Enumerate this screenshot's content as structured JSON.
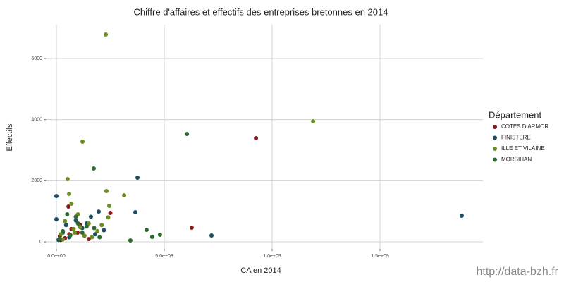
{
  "chart_data": {
    "type": "scatter",
    "title": "Chiffre d'affaires et effectifs des entreprises bretonnes en 2014",
    "x_label": "CA en 2014",
    "y_label": "Effectifs",
    "legend_title": "Département",
    "legend_position": "right",
    "watermark": "http://data-bzh.fr",
    "grid": true,
    "xlim": [
      -49000000,
      1977000000
    ],
    "ylim": [
      -230,
      7108
    ],
    "xticks": [
      {
        "value": 0,
        "label": "0.0e+00"
      },
      {
        "value": 500000000,
        "label": "5.0e+08"
      },
      {
        "value": 1000000000,
        "label": "1.0e+09"
      },
      {
        "value": 1500000000,
        "label": "1.5e+09"
      }
    ],
    "yticks": [
      0,
      2000,
      4000,
      6000
    ],
    "series": [
      {
        "name": "COTES D ARMOR",
        "color": "#8b1a1a",
        "x": [
          925000000,
          627000000,
          56000000,
          250000000,
          16000000,
          98000000,
          40000000,
          70000000,
          130000000,
          20000000,
          60000000,
          150000000,
          110000000
        ],
        "values": [
          3392,
          462,
          1154,
          946,
          185,
          300,
          120,
          420,
          200,
          60,
          250,
          90,
          560
        ]
      },
      {
        "name": "FINISTERE",
        "color": "#1d4e63",
        "x": [
          1879000000,
          376000000,
          366000000,
          719000000,
          0,
          0,
          196000000,
          90000000,
          160000000,
          30000000,
          60000000,
          120000000,
          220000000,
          10000000,
          45000000,
          180000000,
          140000000
        ],
        "values": [
          854,
          2100,
          970,
          208,
          1500,
          740,
          990,
          700,
          820,
          300,
          150,
          450,
          380,
          60,
          550,
          250,
          600
        ]
      },
      {
        "name": "ILLE ET VILAINE",
        "color": "#6b8e23",
        "x": [
          229000000,
          1190000000,
          121000000,
          52000000,
          232000000,
          314000000,
          59000000,
          245000000,
          20000000,
          80000000,
          100000000,
          150000000,
          190000000,
          40000000,
          130000000,
          210000000,
          70000000,
          240000000,
          165000000,
          30000000,
          110000000,
          85000000
        ],
        "values": [
          6785,
          3946,
          3277,
          2054,
          1662,
          1523,
          1570,
          1177,
          250,
          420,
          900,
          600,
          350,
          680,
          200,
          550,
          1250,
          800,
          150,
          80,
          480,
          300
        ]
      },
      {
        "name": "MORBIHAN",
        "color": "#2e6b2e",
        "x": [
          605000000,
          173000000,
          418000000,
          480000000,
          444000000,
          343000000,
          100000000,
          30000000,
          65000000,
          140000000,
          200000000,
          50000000,
          120000000,
          175000000,
          15000000,
          90000000
        ],
        "values": [
          3531,
          2400,
          392,
          231,
          162,
          46,
          600,
          350,
          220,
          500,
          150,
          900,
          300,
          450,
          100,
          820
        ]
      }
    ]
  }
}
